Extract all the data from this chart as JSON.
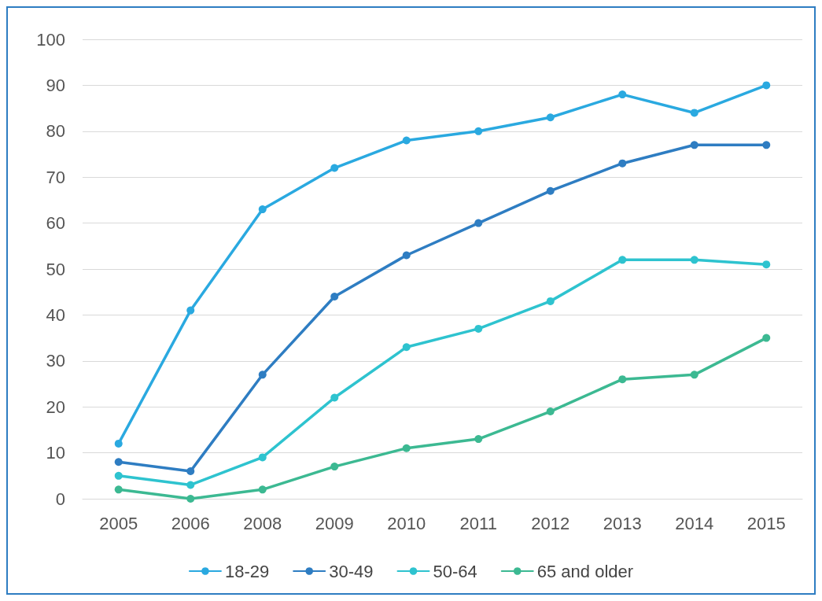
{
  "chart_data": {
    "type": "line",
    "categories": [
      "2005",
      "2006",
      "2008",
      "2009",
      "2010",
      "2011",
      "2012",
      "2013",
      "2014",
      "2015"
    ],
    "series": [
      {
        "name": "18-29",
        "color": "#2aa9e0",
        "values": [
          12,
          41,
          63,
          72,
          78,
          80,
          83,
          88,
          84,
          90
        ]
      },
      {
        "name": "30-49",
        "color": "#2e7dc2",
        "values": [
          8,
          6,
          27,
          44,
          53,
          60,
          67,
          73,
          77,
          77
        ]
      },
      {
        "name": "50-64",
        "color": "#2ec3cf",
        "values": [
          5,
          3,
          9,
          22,
          33,
          37,
          43,
          52,
          52,
          51
        ]
      },
      {
        "name": "65 and older",
        "color": "#3cb992",
        "values": [
          2,
          0,
          2,
          7,
          11,
          13,
          19,
          26,
          27,
          35
        ]
      }
    ],
    "ylim": [
      0,
      100
    ],
    "yticks": [
      0,
      10,
      20,
      30,
      40,
      50,
      60,
      70,
      80,
      90,
      100
    ],
    "grid": "y",
    "legend": "bottom",
    "marker": "circle",
    "line_style": "solid"
  }
}
